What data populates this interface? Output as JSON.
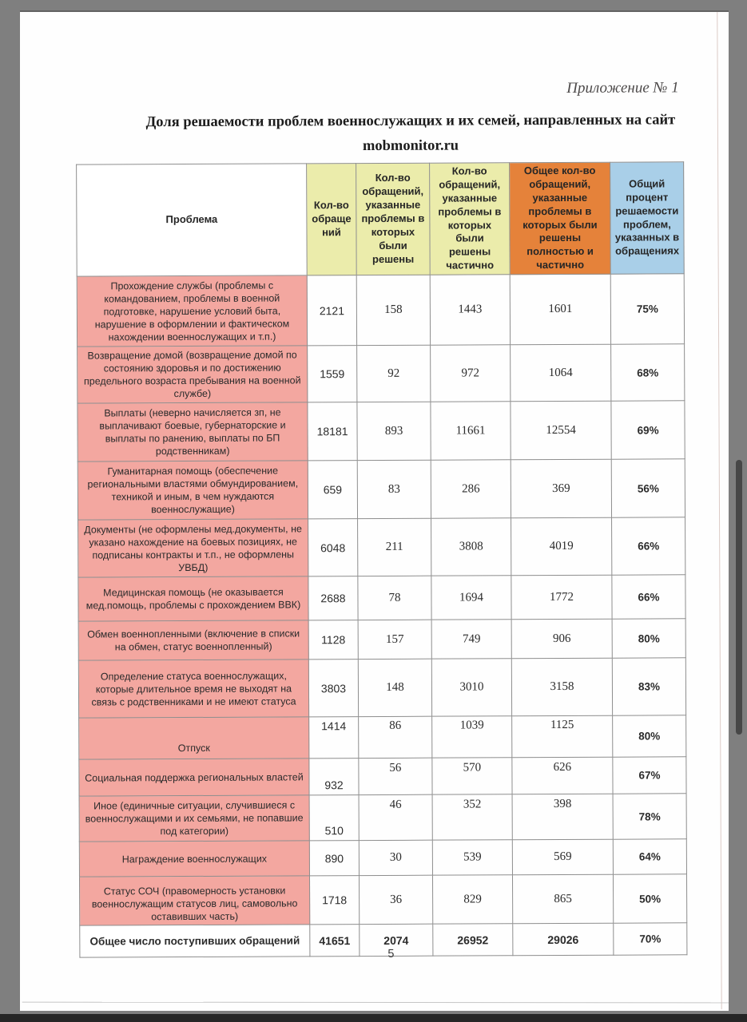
{
  "document": {
    "annotation": "Приложение № 1",
    "title": "Доля решаемости проблем военнослужащих и их семей, направленных на сайт",
    "title_domain": "mobmonitor.ru",
    "page_number": "5"
  },
  "table": {
    "headers": [
      "Проблема",
      "Кол-во обраще ний",
      "Кол-во обращений, указанные проблемы в которых были решены",
      "Кол-во обращений, указанные проблемы в которых были решены частично",
      "Общее кол-во обращений, указанные проблемы в которых были решены полностью и частично",
      "Общий процент решаемости проблем, указанных в обращениях"
    ],
    "rows": [
      {
        "problem": "Прохождение службы (проблемы с командованием, проблемы в военной подготовке, нарушение условий быта, нарушение в оформлении и фактическом нахождении военнослужащих и т.п.)",
        "total": "2121",
        "solved": "158",
        "partial": "1443",
        "combined": "1601",
        "percent": "75%"
      },
      {
        "problem": "Возвращение домой (возвращение домой по состоянию здоровья и по достижению предельного возраста пребывания на военной службе)",
        "total": "1559",
        "solved": "92",
        "partial": "972",
        "combined": "1064",
        "percent": "68%"
      },
      {
        "problem": "Выплаты (неверно начисляется зп, не выплачивают боевые, губернаторские и выплаты по ранению, выплаты по БП родственникам)",
        "total": "18181",
        "solved": "893",
        "partial": "11661",
        "combined": "12554",
        "percent": "69%"
      },
      {
        "problem": "Гуманитарная помощь (обеспечение региональными властями обмундированием, техникой и иным, в чем нуждаются военнослужащие)",
        "total": "659",
        "solved": "83",
        "partial": "286",
        "combined": "369",
        "percent": "56%"
      },
      {
        "problem": "Документы (не оформлены мед.документы, не указано нахождение на боевых позициях, не подписаны контракты и т.п., не оформлены УВБД)",
        "total": "6048",
        "solved": "211",
        "partial": "3808",
        "combined": "4019",
        "percent": "66%"
      },
      {
        "problem": "Медицинская помощь (не оказывается мед.помощь, проблемы с прохождением ВВК)",
        "total": "2688",
        "solved": "78",
        "partial": "1694",
        "combined": "1772",
        "percent": "66%"
      },
      {
        "problem": "Обмен военнопленными (включение в списки на обмен, статус военнопленный)",
        "total": "1128",
        "solved": "157",
        "partial": "749",
        "combined": "906",
        "percent": "80%"
      },
      {
        "problem": "Определение статуса военнослужащих, которые длительное время не выходят на связь с родственниками и не имеют статуса",
        "total": "3803",
        "solved": "148",
        "partial": "3010",
        "combined": "3158",
        "percent": "83%"
      },
      {
        "problem": "Отпуск",
        "total": "1414",
        "solved": "86",
        "partial": "1039",
        "combined": "1125",
        "percent": "80%"
      },
      {
        "problem": "Социальная поддержка региональных властей",
        "total": "932",
        "solved": "56",
        "partial": "570",
        "combined": "626",
        "percent": "67%"
      },
      {
        "problem": "Иное (единичные ситуации, случившиеся с военнослужащими и их семьями, не попавшие под категории)",
        "total": "510",
        "solved": "46",
        "partial": "352",
        "combined": "398",
        "percent": "78%"
      },
      {
        "problem": "Награждение военнослужащих",
        "total": "890",
        "solved": "30",
        "partial": "539",
        "combined": "569",
        "percent": "64%"
      },
      {
        "problem": "Статус СОЧ (правомерность установки военнослужащим статусов лиц, самовольно оставивших часть)",
        "total": "1718",
        "solved": "36",
        "partial": "829",
        "combined": "865",
        "percent": "50%"
      },
      {
        "problem": "Общее число поступивших обращений",
        "total": "41651",
        "solved": "2074",
        "partial": "26952",
        "combined": "29026",
        "percent": "70%",
        "is_total": true
      }
    ]
  },
  "colors": {
    "background_gray": "#7f7f7f",
    "header_yellow": "#ebecab",
    "header_orange": "#e5823a",
    "header_blue": "#a9cfe8",
    "row_pink": "#f3a7a0"
  }
}
